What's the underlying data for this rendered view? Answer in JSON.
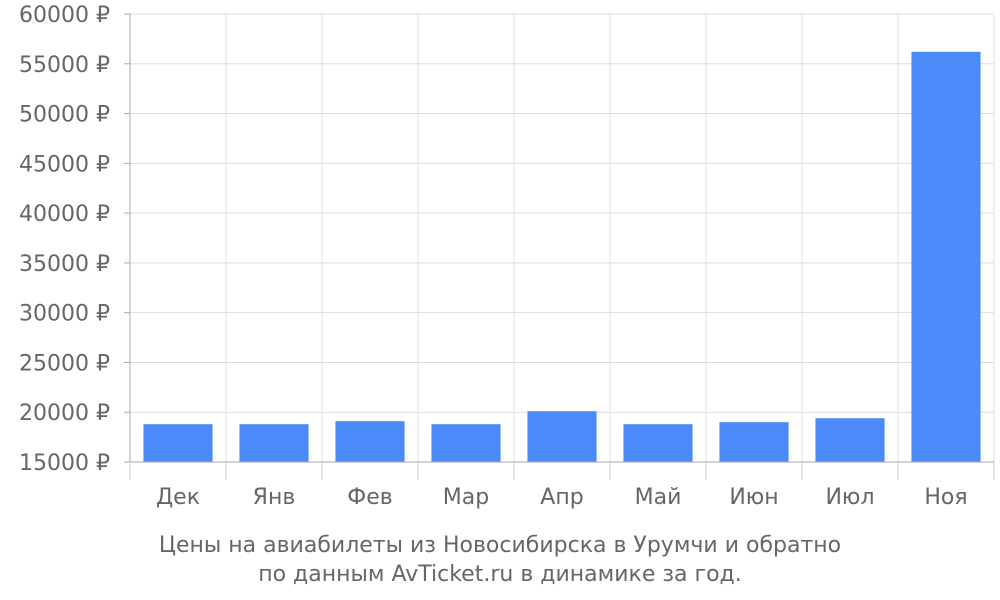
{
  "chart_data": {
    "type": "bar",
    "categories": [
      "Дек",
      "Янв",
      "Фев",
      "Мар",
      "Апр",
      "Май",
      "Июн",
      "Июл",
      "Ноя"
    ],
    "values": [
      18800,
      18800,
      19100,
      18800,
      20100,
      18800,
      19000,
      19400,
      56200
    ],
    "ylim": [
      15000,
      60000
    ],
    "yticks": [
      15000,
      20000,
      25000,
      30000,
      35000,
      40000,
      45000,
      50000,
      55000,
      60000
    ],
    "tick_suffix": " ₽",
    "grid": true,
    "bar_color": "#4d8af9",
    "grid_color": "#dddddd",
    "text_color": "#666666",
    "caption_line1": "Цены на авиабилеты из Новосибирска в Урумчи и обратно",
    "caption_line2": "по данным AvTicket.ru в динамике за год."
  }
}
